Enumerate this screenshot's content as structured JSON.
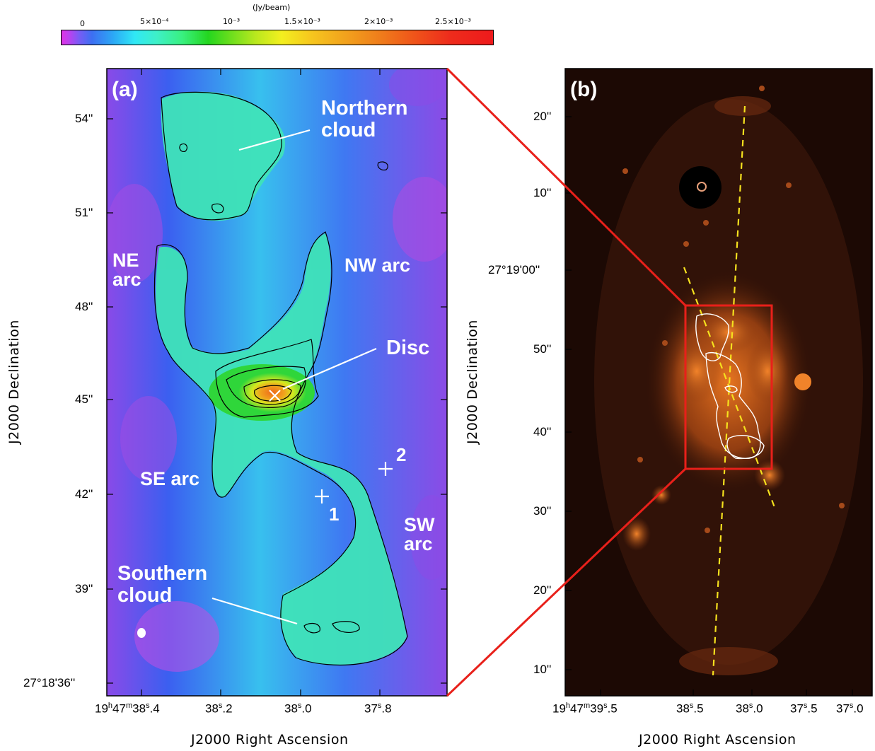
{
  "colorbar": {
    "unit": "(Jy/beam)",
    "tick_labels": [
      "0",
      "5×10⁻⁴",
      "10⁻³",
      "1.5×10⁻³",
      "2×10⁻³",
      "2.5×10⁻³"
    ],
    "range_jy_per_beam": [
      -0.0001,
      0.0027
    ]
  },
  "panel_a": {
    "tag": "(a)",
    "y_ticks": [
      "54''",
      "51''",
      "48''",
      "45''",
      "42''",
      "39''"
    ],
    "y_tick_first": "27°18'36''",
    "x_ticks": [
      "19h47m38s.4",
      "38s.2",
      "38s.0",
      "37s.8"
    ],
    "x_ticks_parts": [
      {
        "a": "19",
        "b": "h",
        "c": "47",
        "d": "m",
        "e": "38",
        "f": "s",
        "g": ".4"
      },
      {
        "a": "38",
        "f": "s",
        "g": ".2"
      },
      {
        "a": "38",
        "f": "s",
        "g": ".0"
      },
      {
        "a": "37",
        "f": "s",
        "g": ".8"
      }
    ],
    "xlabel": "J2000 Right Ascension",
    "ylabel": "J2000 Declination",
    "labels": {
      "northern_1": "Northern",
      "northern_2": "cloud",
      "ne_1": "NE",
      "ne_2": "arc",
      "nw": "NW arc",
      "disc": "Disc",
      "se": "SE arc",
      "sw_1": "SW",
      "sw_2": "arc",
      "southern_1": "Southern",
      "southern_2": "cloud",
      "pos1": "1",
      "pos2": "2"
    }
  },
  "panel_b": {
    "tag": "(b)",
    "y_ticks": [
      "20''",
      "10''",
      "27°19'00''",
      "50''",
      "40''",
      "30''",
      "20''",
      "10''"
    ],
    "x_ticks_parts": [
      {
        "a": "19",
        "b": "h",
        "c": "47",
        "d": "m",
        "e": "39",
        "f": "s",
        "g": ".5"
      },
      {
        "a": "38",
        "f": "s",
        "g": ".5"
      },
      {
        "a": "38",
        "f": "s",
        "g": ".0"
      },
      {
        "a": "37",
        "f": "s",
        "g": ".5"
      },
      {
        "a": "37",
        "f": "s",
        "g": ".0"
      }
    ],
    "xlabel": "J2000 Right Ascension",
    "ylabel": "J2000 Declination"
  },
  "colors": {
    "connector": "#e8201a",
    "dashed_axis": "#f5e11e",
    "contour_a": "#000000",
    "contour_b": "#ffffff"
  }
}
